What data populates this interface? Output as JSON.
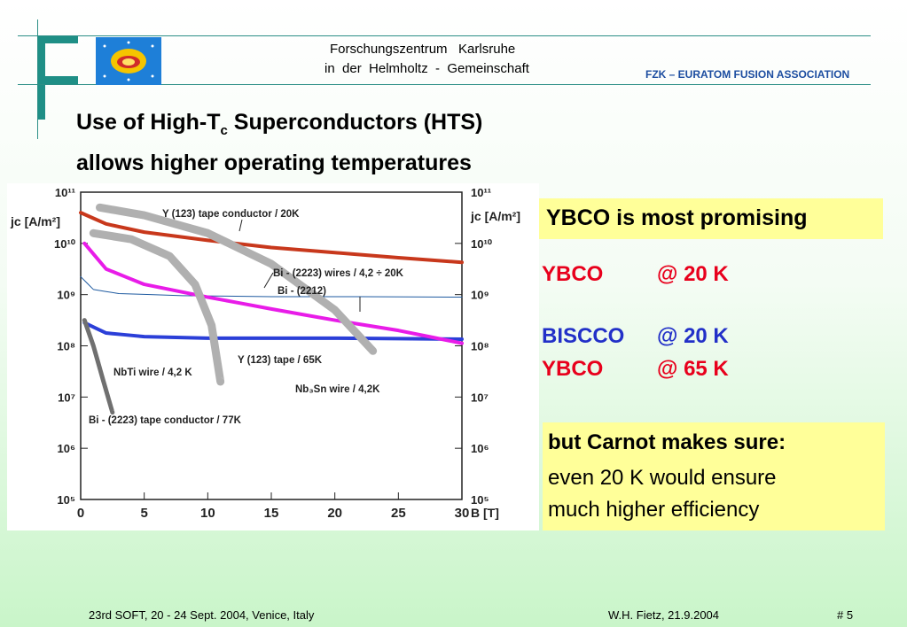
{
  "header": {
    "institute": "Forschungszentrum   Karlsruhe",
    "institute_sub": "in  der  Helmholtz  -  Gemeinschaft",
    "association": "FZK – EURATOM FUSION ASSOCIATION"
  },
  "title": {
    "line1_a": "Use of High",
    "line1_dash": "-",
    "line1_t": "T",
    "line1_sub": "c",
    "line1_b": " Superconductors (HTS)",
    "line2": "allows higher operating temperatures"
  },
  "right": {
    "promising": "YBCO is most promising",
    "rows": [
      {
        "name": "YBCO",
        "cond": "@ 20 K",
        "color": "#e8001c"
      },
      {
        "name": "BISCCO",
        "cond": "@ 20 K",
        "color": "#2230c8"
      },
      {
        "name": "YBCO",
        "cond": "@ 65 K",
        "color": "#e8001c"
      }
    ],
    "note_title": "but Carnot makes sure:",
    "note_line1": "even 20 K would ensure",
    "note_line2": "much higher efficiency"
  },
  "footer": {
    "left": "23rd SOFT, 20 - 24 Sept. 2004, Venice, Italy",
    "author": "W.H. Fietz, 21.9.2004",
    "page": "# 5"
  },
  "chart_data": {
    "type": "line",
    "ylabel": "jc [A/m²]",
    "xlabel": "B [T]",
    "xlim": [
      0,
      30
    ],
    "ylim_exp": [
      5,
      11
    ],
    "x_ticks": [
      "0",
      "5",
      "10",
      "15",
      "20",
      "25",
      "30"
    ],
    "y_ticks": [
      "10⁵",
      "10⁶",
      "10⁷",
      "10⁸",
      "10⁹",
      "10¹⁰",
      "10¹¹"
    ],
    "series": [
      {
        "name": "Y (123) tape conductor / 20K",
        "color": "#c8381c",
        "width": 4,
        "x": [
          0,
          2,
          5,
          10,
          15,
          20,
          25,
          30
        ],
        "log10y": [
          10.6,
          10.38,
          10.22,
          10.06,
          9.92,
          9.82,
          9.72,
          9.63
        ]
      },
      {
        "name": "Bi - (2223) wires / 4,2 ÷ 20K",
        "color": "#1e5aa0",
        "width": 1,
        "x": [
          0,
          1,
          3,
          8,
          15,
          22,
          30
        ],
        "log10y": [
          9.35,
          9.1,
          9.02,
          8.98,
          8.96,
          8.96,
          8.95
        ]
      },
      {
        "name": "Bi - (2212)",
        "color": "#2b3fd8",
        "width": 4,
        "x": [
          0.3,
          2,
          5,
          10,
          20,
          30
        ],
        "log10y": [
          8.45,
          8.25,
          8.18,
          8.15,
          8.15,
          8.13
        ]
      },
      {
        "name": "Y (123) tape / 65K",
        "color": "#e81ce8",
        "width": 4,
        "x": [
          0.3,
          2,
          5,
          10,
          15,
          20,
          25,
          30
        ],
        "log10y": [
          10.0,
          9.5,
          9.2,
          8.95,
          8.72,
          8.5,
          8.3,
          8.05
        ]
      },
      {
        "name": "NbTi wire / 4,2 K",
        "color": "#b0b0b0",
        "width": 9,
        "x": [
          1,
          4,
          7,
          9,
          10.3,
          11
        ],
        "log10y": [
          10.2,
          10.08,
          9.75,
          9.2,
          8.4,
          7.3
        ]
      },
      {
        "name": "Nb₃Sn wire / 4,2K",
        "color": "#b0b0b0",
        "width": 9,
        "x": [
          1.5,
          5,
          10,
          15,
          20,
          23
        ],
        "log10y": [
          10.7,
          10.55,
          10.2,
          9.6,
          8.7,
          7.9
        ]
      },
      {
        "name": "Bi - (2223) tape conductor / 77K",
        "color": "#707070",
        "width": 5,
        "x": [
          0.3,
          1,
          1.8,
          2.5
        ],
        "log10y": [
          8.5,
          8.0,
          7.3,
          6.7
        ]
      }
    ],
    "annotations": [
      "Y (123) tape conductor / 20K",
      "Bi - (2223) wires / 4,2 ÷ 20K",
      "Bi - (2212)",
      "Y (123) tape / 65K",
      "NbTi wire / 4,2 K",
      "Nb₃Sn wire / 4,2K",
      "Bi - (2223) tape conductor / 77K"
    ]
  }
}
